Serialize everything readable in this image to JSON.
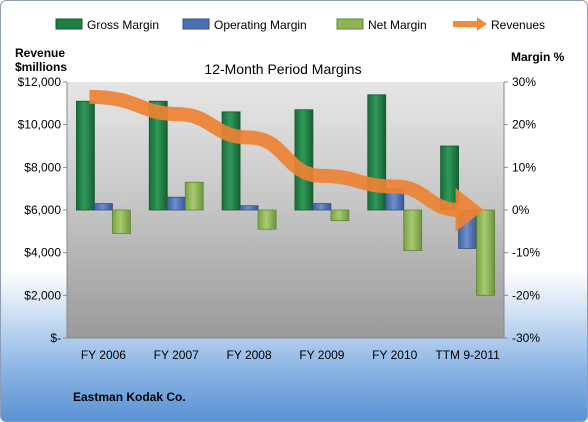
{
  "legend": [
    {
      "label": "Gross Margin",
      "color": "#1e7d45"
    },
    {
      "label": "Operating Margin",
      "color": "#4a70b4"
    },
    {
      "label": "Net Margin",
      "color": "#8cb454"
    },
    {
      "label": "Revenues",
      "color": "#f08a3c"
    }
  ],
  "company": "Eastman Kodak Co.",
  "chart_data": {
    "type": "bar",
    "title": "12-Month Period Margins",
    "left_axis_title": [
      "Revenue",
      "$millions"
    ],
    "right_axis_title": "Margin %",
    "categories": [
      "FY 2006",
      "FY 2007",
      "FY 2008",
      "FY 2009",
      "FY 2010",
      "TTM 9-2011"
    ],
    "left_ticks": [
      "$-",
      "$2,000",
      "$4,000",
      "$6,000",
      "$8,000",
      "$10,000",
      "$12,000"
    ],
    "right_ticks": [
      "-30%",
      "-20%",
      "-10%",
      "0%",
      "10%",
      "20%",
      "30%"
    ],
    "left_ylim": [
      0,
      12000
    ],
    "right_ylim": [
      -30,
      30
    ],
    "series": [
      {
        "name": "Gross Margin",
        "axis": "right",
        "values": [
          25.5,
          25.5,
          23,
          23.5,
          27,
          15
        ]
      },
      {
        "name": "Operating Margin",
        "axis": "right",
        "values": [
          1.5,
          3,
          1,
          1.5,
          5,
          -9
        ]
      },
      {
        "name": "Net Margin",
        "axis": "right",
        "values": [
          -5.5,
          6.5,
          -4.5,
          -2.5,
          -9.5,
          -20
        ]
      },
      {
        "name": "Revenues",
        "axis": "left",
        "type": "line",
        "values": [
          11300,
          10500,
          9400,
          7600,
          7100,
          6000
        ]
      }
    ],
    "grid": false,
    "legend_position": "top"
  }
}
